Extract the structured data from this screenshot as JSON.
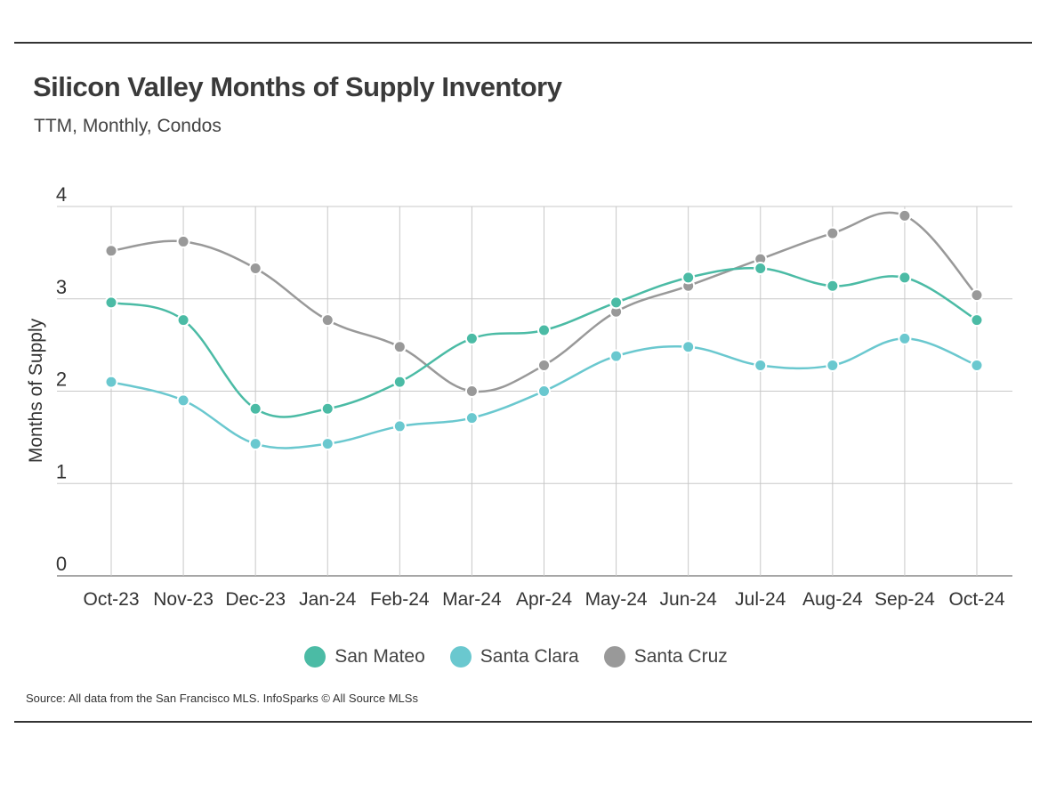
{
  "header": {
    "title": "Silicon Valley Months of Supply Inventory",
    "subtitle": "TTM, Monthly, Condos"
  },
  "footer": {
    "source": "Source:  All data from the San Francisco MLS. InfoSparks © All Source MLSs"
  },
  "chart_data": {
    "type": "line",
    "title": "Silicon Valley Months of Supply Inventory",
    "subtitle": "TTM, Monthly, Condos",
    "xlabel": "",
    "ylabel": "Months of Supply",
    "ylim": [
      0,
      4
    ],
    "yticks": [
      "0",
      "1",
      "2",
      "3",
      "4"
    ],
    "grid": true,
    "legend_position": "bottom",
    "categories": [
      "Oct-23",
      "Nov-23",
      "Dec-23",
      "Jan-24",
      "Feb-24",
      "Mar-24",
      "Apr-24",
      "May-24",
      "Jun-24",
      "Jul-24",
      "Aug-24",
      "Sep-24",
      "Oct-24"
    ],
    "series": [
      {
        "name": "San Mateo",
        "color": "#4bbba5",
        "values": [
          2.96,
          2.77,
          1.81,
          1.81,
          2.1,
          2.57,
          2.66,
          2.96,
          3.23,
          3.33,
          3.14,
          3.23,
          2.77
        ]
      },
      {
        "name": "Santa Clara",
        "color": "#6ac8cf",
        "values": [
          2.1,
          1.9,
          1.43,
          1.43,
          1.62,
          1.71,
          2.0,
          2.38,
          2.48,
          2.28,
          2.28,
          2.57,
          2.28
        ]
      },
      {
        "name": "Santa Cruz",
        "color": "#999999",
        "values": [
          3.52,
          3.62,
          3.33,
          2.77,
          2.48,
          2.0,
          2.28,
          2.86,
          3.14,
          3.43,
          3.71,
          3.9,
          3.04
        ]
      }
    ]
  }
}
